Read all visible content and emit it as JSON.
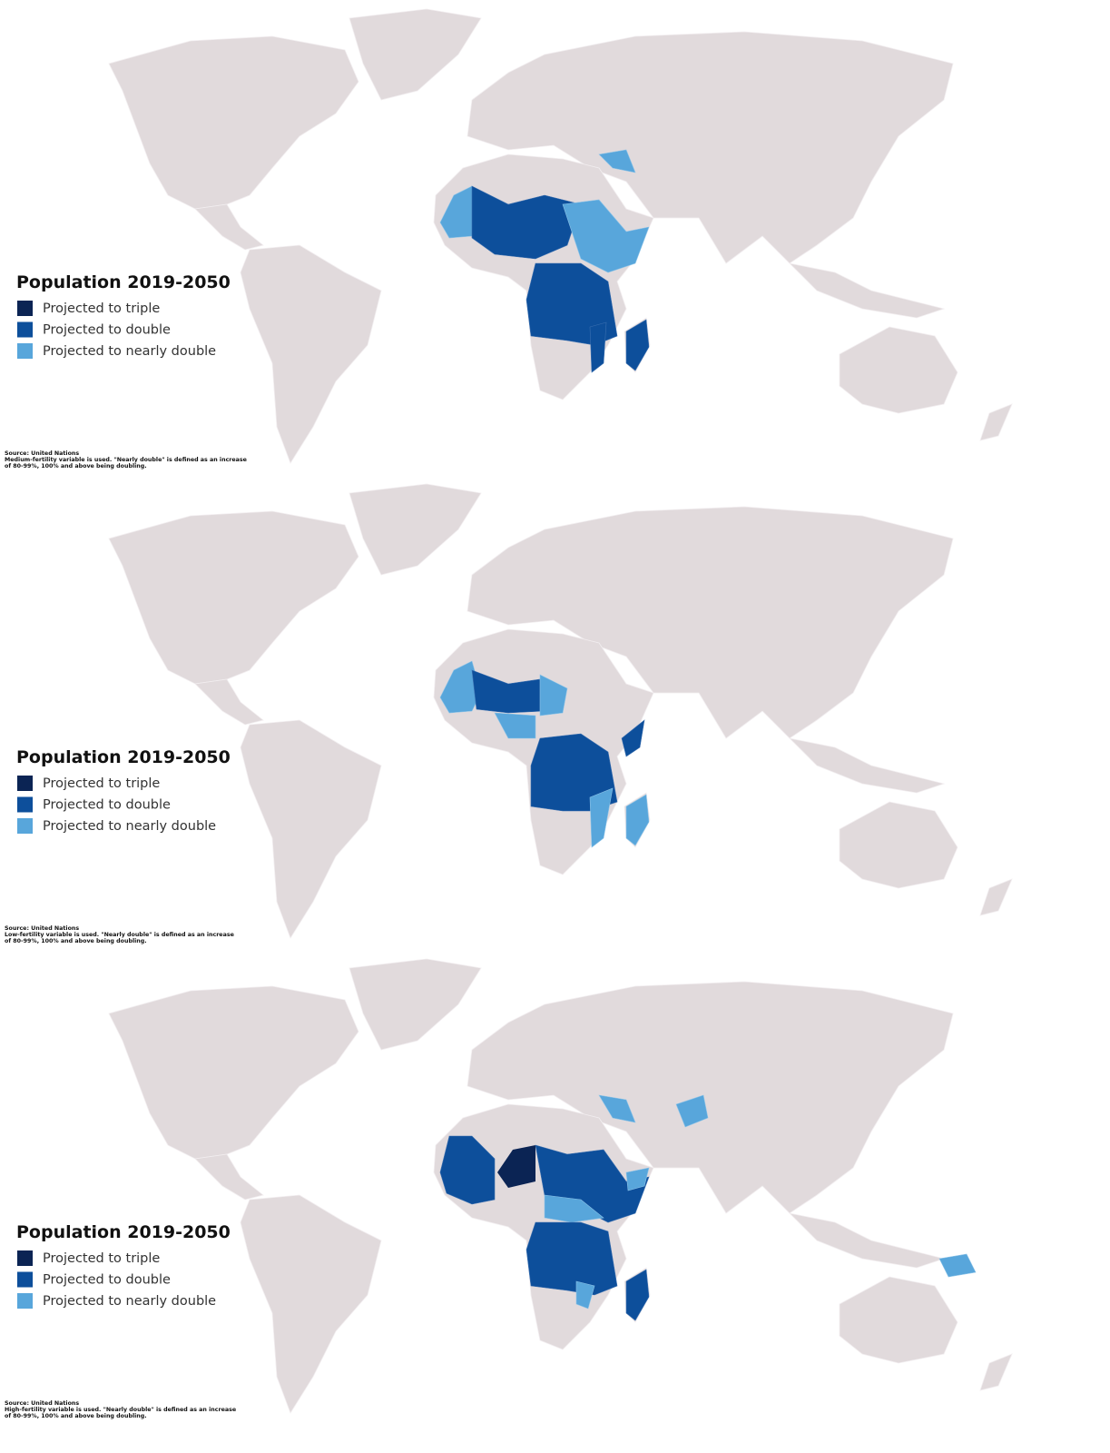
{
  "panels": [
    {
      "title": "Population 2019-2050",
      "legend": [
        {
          "label": "Projected to triple",
          "color": "#0b2454"
        },
        {
          "label": "Projected to double",
          "color": "#0d4f9b"
        },
        {
          "label": "Projected to nearly double",
          "color": "#58a6db"
        }
      ],
      "source": [
        "Source: United Nations",
        "Medium-fertility variable is used. \"Nearly double\" is defined as an increase",
        "of 80-99%, 100% and above being doubling."
      ]
    },
    {
      "title": "Population 2019-2050",
      "legend": [
        {
          "label": "Projected to triple",
          "color": "#0b2454"
        },
        {
          "label": "Projected to double",
          "color": "#0d4f9b"
        },
        {
          "label": "Projected to nearly double",
          "color": "#58a6db"
        }
      ],
      "source": [
        "Source: United Nations",
        "Low-fertility variable is used. \"Nearly double\" is defined as an increase",
        "of 80-99%, 100% and above being doubling."
      ]
    },
    {
      "title": "Population 2019-2050",
      "legend": [
        {
          "label": "Projected to triple",
          "color": "#0b2454"
        },
        {
          "label": "Projected to double",
          "color": "#0d4f9b"
        },
        {
          "label": "Projected to nearly double",
          "color": "#58a6db"
        }
      ],
      "source": [
        "Source: United Nations",
        "High-fertility variable is used. \"Nearly double\" is defined as an increase",
        "of 80-99%, 100% and above being doubling."
      ]
    }
  ]
}
